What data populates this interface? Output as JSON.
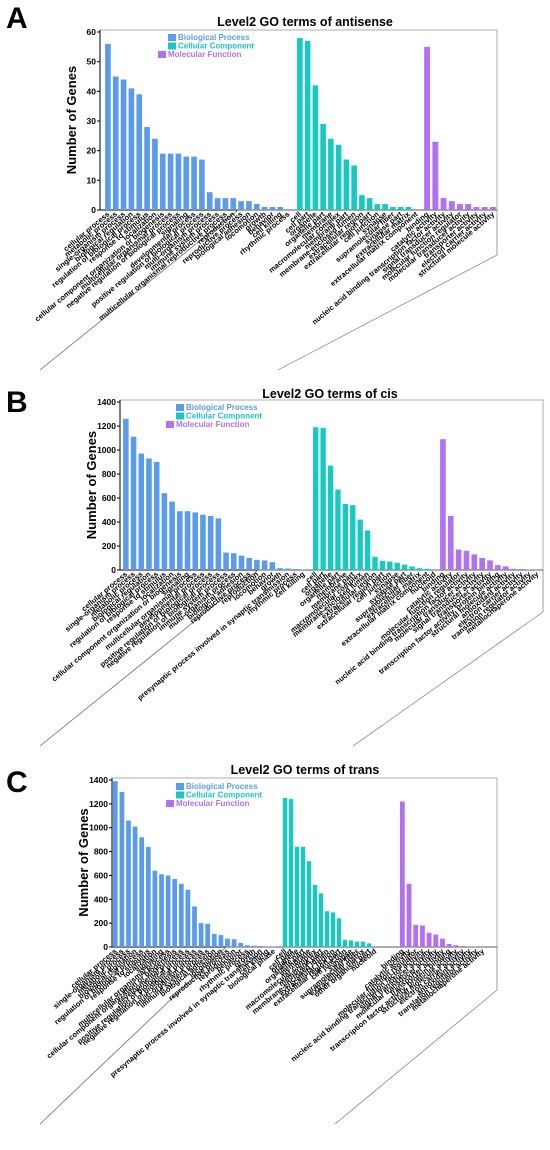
{
  "colors": {
    "biological_process": "#5b9bea",
    "cellular_component": "#17c9c3",
    "molecular_function": "#b072ee",
    "frame": "#9a9a9a"
  },
  "legend": [
    "Biological Process",
    "Cellular Component",
    "Molecular Function"
  ],
  "ylabel": "Number of Genes",
  "chart_data": [
    {
      "panel": "A",
      "type": "bar",
      "title": "Level2 GO terms of antisense",
      "ylabel": "Number of Genes",
      "ylim": [
        0,
        60
      ],
      "yticks": [
        0,
        10,
        20,
        30,
        40,
        50,
        60
      ],
      "legend_placement": "top-left",
      "groups": [
        {
          "name": "Biological Process",
          "color_key": "biological_process",
          "categories": [
            "cellular process",
            "metabolic process",
            "single-organism process",
            "biological regulation",
            "regulation of biological process",
            "response to stimulus",
            "localization",
            "cellular component organization or biogenesis",
            "multicellular organismal process",
            "negative regulation of biological process",
            "signaling",
            "developmental process",
            "positive regulation of biological process",
            "multi-organism process",
            "immune system process",
            "multicellular organismal reproductive process",
            "reproduction",
            "reproductive process",
            "biological adhesion",
            "locomotion",
            "growth",
            "behavior",
            "cell killing",
            "rhythmic process"
          ],
          "values": [
            56,
            45,
            44,
            41,
            39,
            28,
            24,
            19,
            19,
            19,
            18,
            18,
            17,
            6,
            4,
            4,
            4,
            3,
            3,
            2,
            1,
            1,
            1,
            0
          ]
        },
        {
          "name": "Cellular Component",
          "color_key": "cellular_component",
          "categories": [
            "cell",
            "cell part",
            "organelle",
            "organelle part",
            "membrane",
            "macromolecular complex",
            "membrane part",
            "membrane-enclosed lumen",
            "extracellular region",
            "extracellular region part",
            "cell junction",
            "synapse",
            "supramolecular fiber",
            "synapse part",
            "extracellular matrix",
            "extracellular matrix component"
          ],
          "values": [
            58,
            57,
            42,
            29,
            24,
            22,
            17,
            15,
            5,
            4,
            2,
            2,
            1,
            1,
            1,
            0
          ]
        },
        {
          "name": "Molecular Function",
          "color_key": "molecular_function",
          "categories": [
            "binding",
            "catalytic activity",
            "nucleic acid binding transcription factor activity",
            "signal transducer activity",
            "molecular function regulator",
            "molecular transducer activity",
            "transporter activity",
            "electron carrier activity",
            "structural molecule activity"
          ],
          "values": [
            55,
            23,
            4,
            3,
            2,
            2,
            1,
            1,
            1
          ]
        }
      ]
    },
    {
      "panel": "B",
      "type": "bar",
      "title": "Level2 GO terms of cis",
      "ylabel": "Number of Genes",
      "ylim": [
        0,
        1400
      ],
      "yticks": [
        0,
        200,
        400,
        600,
        800,
        1000,
        1200,
        1400
      ],
      "legend_placement": "top-left",
      "groups": [
        {
          "name": "Biological Process",
          "color_key": "biological_process",
          "categories": [
            "cellular process",
            "single-organism process",
            "metabolic process",
            "biological regulation",
            "regulation of biological process",
            "response to stimulus",
            "localization",
            "cellular component organization or biogenesis",
            "signaling",
            "multicellular organismal process",
            "developmental process",
            "positive regulation of biological process",
            "negative regulation of biological process",
            "immune system process",
            "multi-organism process",
            "biological adhesion",
            "reproductive process",
            "reproduction",
            "locomotion",
            "behavior",
            "growth",
            "presynaptic process involved in synaptic transmission",
            "rhythmic process",
            "cell killing"
          ],
          "values": [
            1260,
            1110,
            970,
            930,
            900,
            640,
            570,
            490,
            490,
            480,
            460,
            450,
            430,
            145,
            140,
            120,
            100,
            85,
            80,
            65,
            15,
            12,
            8,
            5
          ]
        },
        {
          "name": "Cellular Component",
          "color_key": "cellular_component",
          "categories": [
            "cell",
            "cell part",
            "organelle",
            "organelle part",
            "membrane",
            "membrane part",
            "macromolecular complex",
            "membrane-enclosed lumen",
            "extracellular region",
            "extracellular region part",
            "cell junction",
            "synapse",
            "synapse part",
            "supramolecular fiber",
            "extracellular matrix",
            "extracellular matrix component",
            "nucleoid"
          ],
          "values": [
            1190,
            1185,
            870,
            670,
            550,
            540,
            420,
            330,
            110,
            75,
            70,
            60,
            45,
            30,
            15,
            10,
            5
          ]
        },
        {
          "name": "Molecular Function",
          "color_key": "molecular_function",
          "categories": [
            "binding",
            "catalytic activity",
            "molecular function regulator",
            "nucleic acid binding transcription factor activity",
            "molecular transducer activity",
            "signal transducer activity",
            "transporter activity",
            "transcription factor activity, protein binding",
            "structural molecule activity",
            "antioxidant activity",
            "electron carrier activity",
            "translation regulator activity",
            "metallochaperone activity"
          ],
          "values": [
            1090,
            450,
            170,
            160,
            130,
            100,
            80,
            40,
            30,
            10,
            8,
            5,
            3
          ]
        }
      ]
    },
    {
      "panel": "C",
      "type": "bar",
      "title": "Level2 GO terms of trans",
      "ylabel": "Number of Genes",
      "ylim": [
        0,
        1400
      ],
      "yticks": [
        0,
        200,
        400,
        600,
        800,
        1000,
        1200,
        1400
      ],
      "legend_placement": "top-left",
      "groups": [
        {
          "name": "Biological Process",
          "color_key": "biological_process",
          "categories": [
            "cellular process",
            "single-organism process",
            "metabolic process",
            "biological regulation",
            "regulation of biological process",
            "response to stimulus",
            "localization",
            "signaling",
            "multicellular organismal process",
            "cellular component organization or biogenesis",
            "developmental process",
            "positive regulation of biological process",
            "negative regulation of biological process",
            "multi-organism process",
            "immune system process",
            "biological adhesion",
            "locomotion",
            "reproductive process",
            "reproduction",
            "behavior",
            "rhythmic process",
            "growth",
            "presynaptic process involved in synaptic transmission",
            "cell killing",
            "biological phase"
          ],
          "values": [
            1390,
            1300,
            1060,
            1010,
            920,
            840,
            640,
            610,
            600,
            570,
            530,
            480,
            340,
            200,
            195,
            110,
            100,
            70,
            65,
            35,
            15,
            10,
            8,
            5,
            3
          ]
        },
        {
          "name": "Cellular Component",
          "color_key": "cellular_component",
          "categories": [
            "cell",
            "cell part",
            "organelle",
            "organelle part",
            "membrane",
            "macromolecular complex",
            "membrane part",
            "membrane-enclosed lumen",
            "extracellular region",
            "extracellular region part",
            "cell junction",
            "synapse",
            "supramolecular fiber",
            "extracellular matrix",
            "other organism part",
            "nucleoid"
          ],
          "values": [
            1250,
            1240,
            840,
            840,
            720,
            520,
            450,
            300,
            290,
            240,
            60,
            55,
            45,
            45,
            30,
            5
          ]
        },
        {
          "name": "Molecular Function",
          "color_key": "molecular_function",
          "categories": [
            "binding",
            "catalytic activity",
            "molecular function regulator",
            "nucleic acid binding transcription factor activity",
            "signal transducer activity",
            "molecular transducer activity",
            "transporter activity",
            "transcription factor activity, protein binding",
            "structural molecule activity",
            "electron carrier activity",
            "antioxidant activity",
            "translation regulator activity",
            "metallochaperone activity"
          ],
          "values": [
            1220,
            530,
            185,
            180,
            120,
            105,
            70,
            25,
            15,
            8,
            5,
            3,
            2
          ]
        }
      ]
    }
  ]
}
